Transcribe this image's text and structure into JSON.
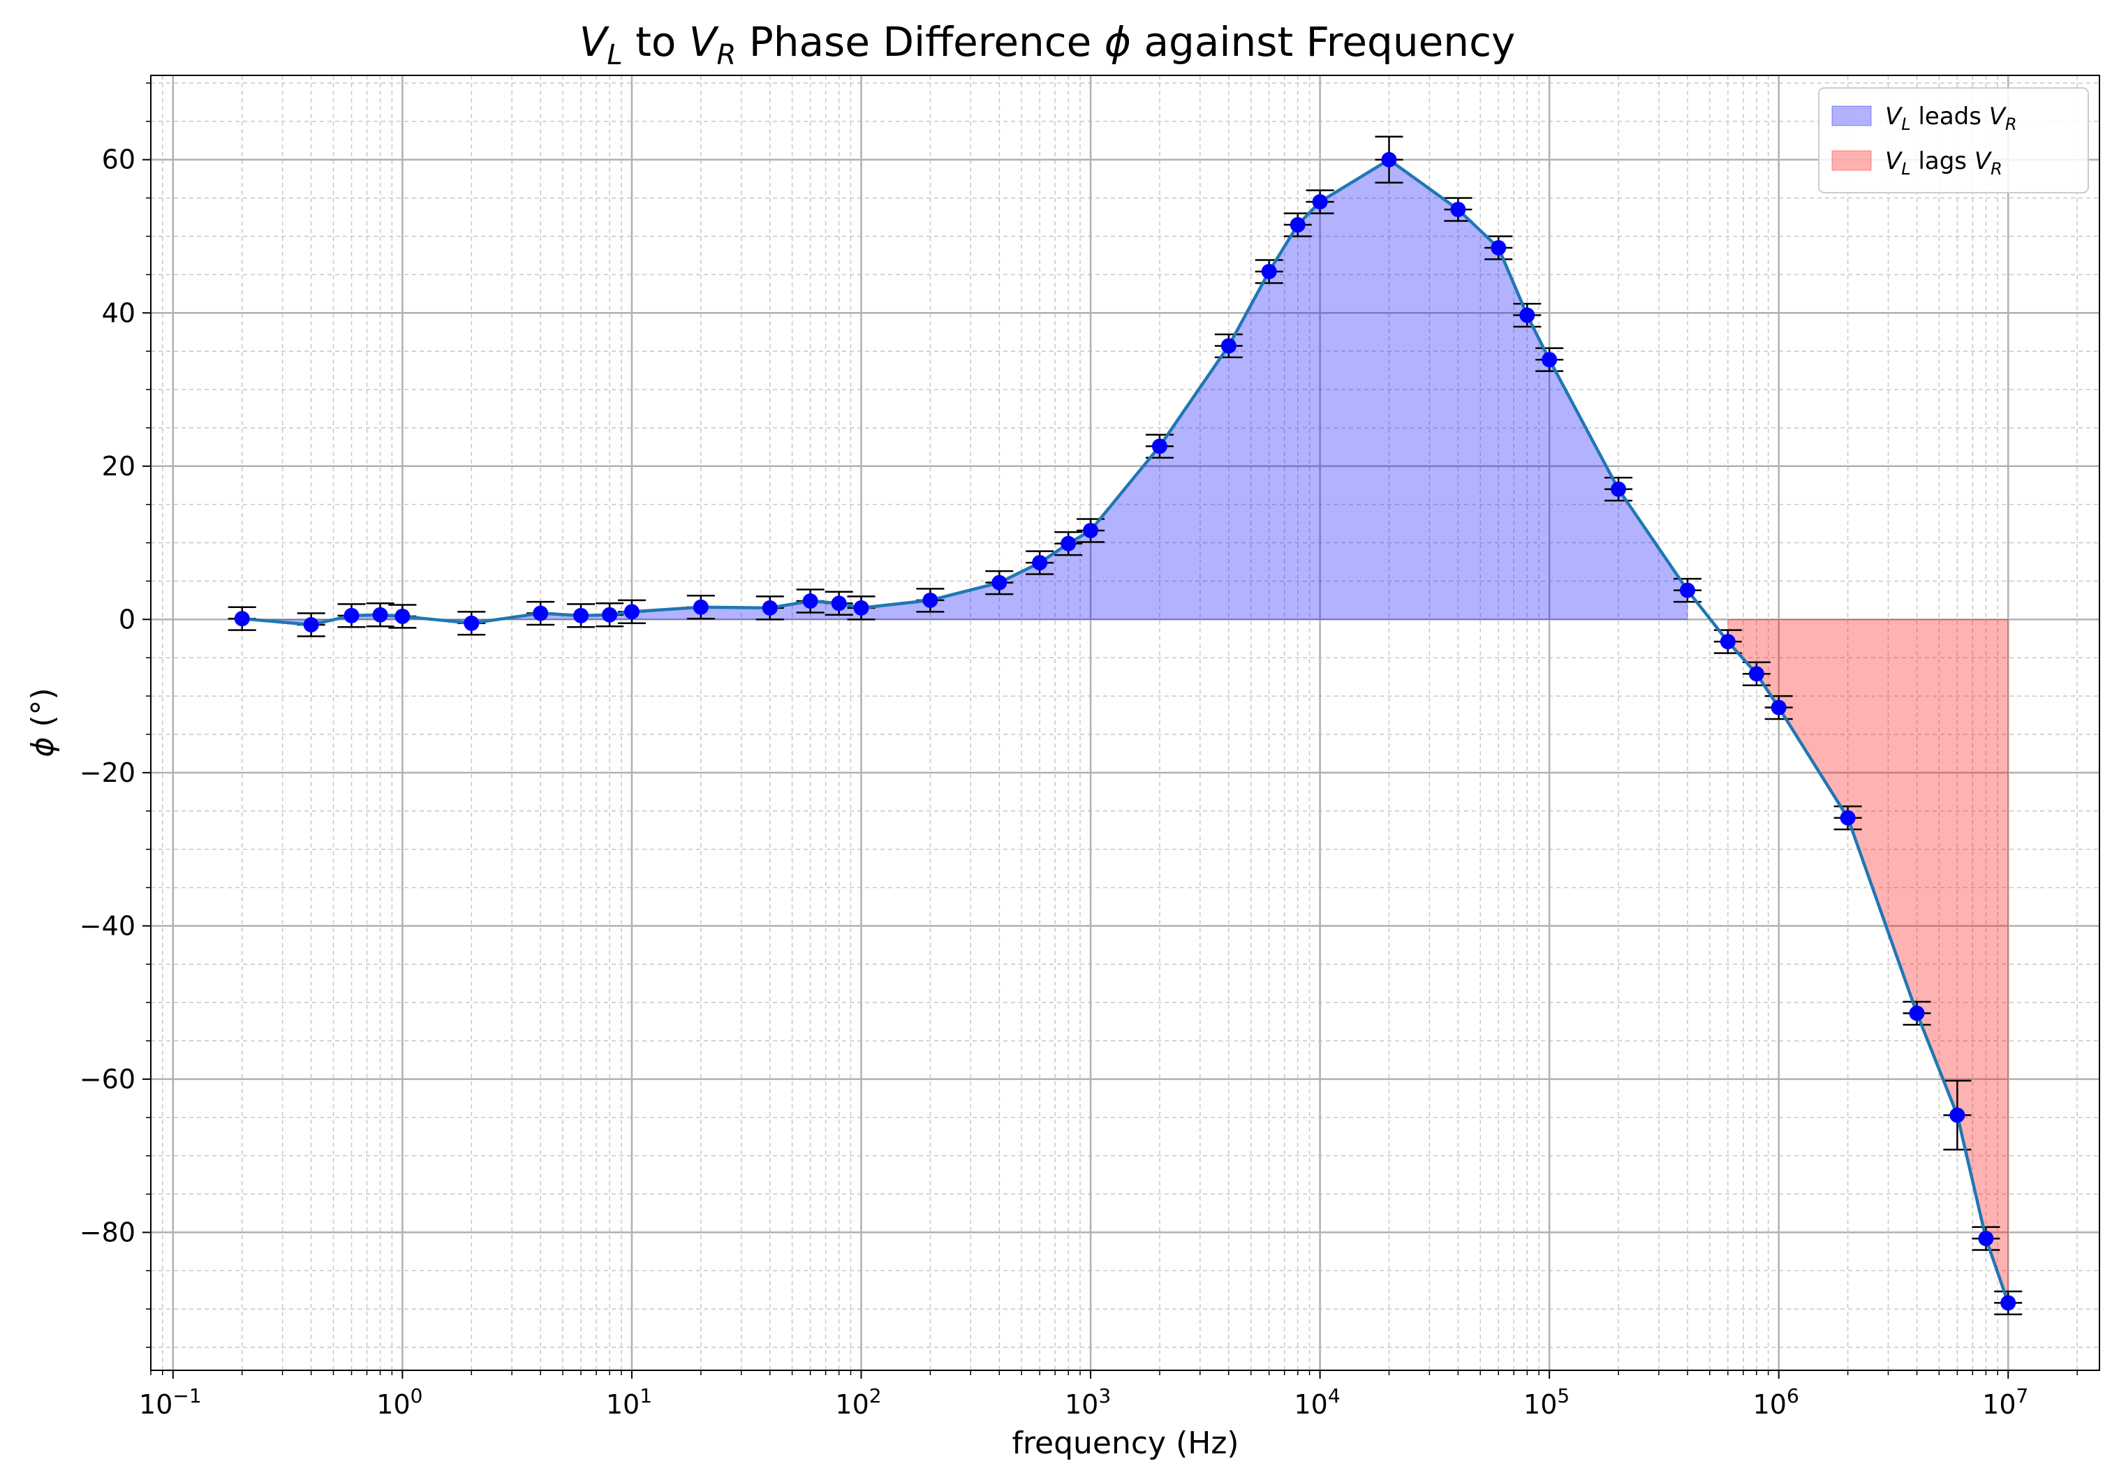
{
  "chart_data": {
    "type": "line",
    "title_parts": {
      "v1": "V",
      "v1_sub": "L",
      "to": " to ",
      "v2": "V",
      "v2_sub": "R",
      "middle": " Phase Difference ",
      "phi": "ϕ",
      "end": " against Frequency"
    },
    "xlabel": "frequency (Hz)",
    "ylabel_parts": {
      "phi": "ϕ",
      "unit": " (°)"
    },
    "x_scale": "log",
    "xlim": [
      0.08,
      25000000
    ],
    "ylim": [
      -98,
      71
    ],
    "x_ticks": [
      {
        "mantissa": "10",
        "exp": "−1",
        "value": 0.1
      },
      {
        "mantissa": "10",
        "exp": "0",
        "value": 1
      },
      {
        "mantissa": "10",
        "exp": "1",
        "value": 10
      },
      {
        "mantissa": "10",
        "exp": "2",
        "value": 100
      },
      {
        "mantissa": "10",
        "exp": "3",
        "value": 1000
      },
      {
        "mantissa": "10",
        "exp": "4",
        "value": 10000
      },
      {
        "mantissa": "10",
        "exp": "5",
        "value": 100000
      },
      {
        "mantissa": "10",
        "exp": "6",
        "value": 1000000
      },
      {
        "mantissa": "10",
        "exp": "7",
        "value": 10000000
      }
    ],
    "y_ticks": [
      {
        "label": "60",
        "value": 60
      },
      {
        "label": "40",
        "value": 40
      },
      {
        "label": "20",
        "value": 20
      },
      {
        "label": "0",
        "value": 0
      },
      {
        "label": "−20",
        "value": -20
      },
      {
        "label": "−40",
        "value": -40
      },
      {
        "label": "−60",
        "value": -60
      },
      {
        "label": "−80",
        "value": -80
      }
    ],
    "grid": true,
    "legend_position": "upper-right",
    "legend": [
      {
        "v": "V",
        "sub1": "L",
        "text": " leads ",
        "v2": "V",
        "sub2": "R",
        "color": "#0000ff"
      },
      {
        "v": "V",
        "sub1": "L",
        "text": " lags ",
        "v2": "V",
        "sub2": "R",
        "color": "#ff0000"
      }
    ],
    "fills": {
      "lead": {
        "x_range": [
          0.2,
          400000
        ],
        "color": "#0000ff",
        "alpha": 0.3
      },
      "lag": {
        "x_range": [
          600000,
          10000000
        ],
        "color": "#ff0000",
        "alpha": 0.3
      }
    },
    "colors": {
      "line": "#1f77b4",
      "marker": "#0000ff",
      "errorbar": "#000000"
    },
    "series": [
      {
        "x": [
          0.2,
          0.4,
          0.6,
          0.8,
          1,
          2,
          4,
          6,
          8,
          10,
          20,
          40,
          60,
          80,
          100,
          200,
          400,
          600,
          800,
          1000,
          2000,
          4000,
          6000,
          8000,
          10000,
          20000,
          40000,
          60000,
          80000,
          100000,
          200000,
          400000,
          600000,
          800000,
          1000000,
          2000000,
          4000000,
          6000000,
          8000000,
          10000000
        ],
        "y": [
          0.1,
          -0.7,
          0.5,
          0.6,
          0.4,
          -0.5,
          0.8,
          0.5,
          0.6,
          1.0,
          1.6,
          1.5,
          2.4,
          2.1,
          1.5,
          2.5,
          4.8,
          7.4,
          9.9,
          11.6,
          22.6,
          35.7,
          45.4,
          51.5,
          54.5,
          60.0,
          53.5,
          48.5,
          39.7,
          33.9,
          17.0,
          3.8,
          -2.9,
          -7.1,
          -11.5,
          -25.9,
          -51.4,
          -64.7,
          -80.8,
          -89.2
        ],
        "yerr": [
          1.5,
          1.5,
          1.5,
          1.5,
          1.5,
          1.5,
          1.5,
          1.5,
          1.5,
          1.5,
          1.5,
          1.5,
          1.5,
          1.5,
          1.5,
          1.5,
          1.5,
          1.5,
          1.5,
          1.5,
          1.5,
          1.5,
          1.5,
          1.5,
          1.5,
          3.0,
          1.5,
          1.5,
          1.5,
          1.5,
          1.5,
          1.5,
          1.5,
          1.5,
          1.5,
          1.5,
          1.5,
          4.5,
          1.5,
          1.5
        ]
      }
    ]
  }
}
